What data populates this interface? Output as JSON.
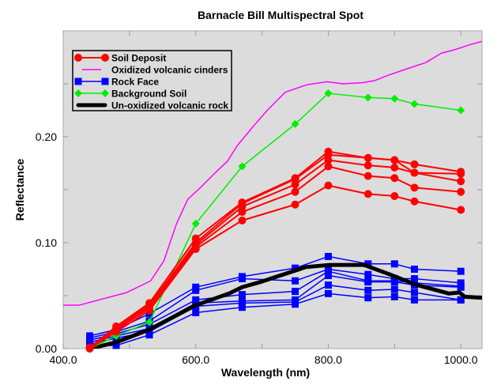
{
  "chart_data": {
    "type": "line",
    "title": "Barnacle Bill Multispectral Spot",
    "xlabel": "Wavelength (nm)",
    "ylabel": "Reflectance",
    "xlim": [
      400,
      1032
    ],
    "ylim": [
      0,
      0.3
    ],
    "xticks": [
      400,
      500,
      600,
      700,
      800,
      900,
      1000
    ],
    "xtick_labels": [
      "400.0",
      "",
      "600.0",
      "",
      "800.0",
      "",
      "1000.0"
    ],
    "yticks": [
      0,
      0.05,
      0.1,
      0.15,
      0.2,
      0.25
    ],
    "ytick_labels": [
      "0.00",
      "",
      "0.10",
      "",
      "0.20",
      ""
    ],
    "grid": false,
    "legend_position": "top-left",
    "background": "#dcdcdc",
    "colors": {
      "soil_deposit": "#ff0000",
      "oxidized_cinders": "#ff00ff",
      "rock_face": "#0000ff",
      "background_soil": "#00ee00",
      "unoxidized_rock": "#000000"
    },
    "legend": [
      {
        "label": "Soil Deposit",
        "color": "#ff0000",
        "marker": "circle",
        "width": 2
      },
      {
        "label": "Oxidized volcanic cinders",
        "color": "#ff00ff",
        "marker": "none",
        "width": 1.5
      },
      {
        "label": "Rock Face",
        "color": "#0000ff",
        "marker": "square",
        "width": 1.5
      },
      {
        "label": "Background Soil",
        "color": "#00ee00",
        "marker": "diamond",
        "width": 1.5
      },
      {
        "label": "Un-oxidized volcanic rock",
        "color": "#000000",
        "marker": "none",
        "width": 5
      }
    ],
    "x": [
      440,
      480,
      530,
      600,
      670,
      750,
      800,
      860,
      900,
      930,
      1000
    ],
    "series": [
      {
        "name": "Soil Deposit",
        "group": "soil_deposit",
        "values": [
          0.001,
          0.021,
          0.043,
          0.104,
          0.138,
          0.161,
          0.186,
          0.18,
          0.178,
          0.174,
          0.167
        ]
      },
      {
        "name": "Soil Deposit",
        "group": "soil_deposit",
        "values": [
          0.001,
          0.02,
          0.041,
          0.1,
          0.137,
          0.16,
          0.183,
          0.18,
          0.178,
          0.166,
          0.165
        ]
      },
      {
        "name": "Soil Deposit",
        "group": "soil_deposit",
        "values": [
          0.001,
          0.019,
          0.04,
          0.098,
          0.134,
          0.155,
          0.178,
          0.173,
          0.171,
          0.166,
          0.158
        ]
      },
      {
        "name": "Soil Deposit",
        "group": "soil_deposit",
        "values": [
          0.001,
          0.018,
          0.038,
          0.096,
          0.129,
          0.148,
          0.172,
          0.163,
          0.161,
          0.152,
          0.148
        ]
      },
      {
        "name": "Soil Deposit",
        "group": "soil_deposit",
        "values": [
          0.0,
          0.016,
          0.036,
          0.094,
          0.121,
          0.136,
          0.154,
          0.146,
          0.144,
          0.139,
          0.131
        ]
      },
      {
        "name": "Background Soil",
        "group": "background_soil",
        "values": [
          0.0,
          0.012,
          0.025,
          0.118,
          0.172,
          0.212,
          0.241,
          0.237,
          0.236,
          0.231,
          0.225
        ]
      },
      {
        "name": "Rock Face",
        "group": "rock_face",
        "values": [
          0.012,
          0.018,
          0.033,
          0.058,
          0.068,
          0.076,
          0.087,
          0.08,
          0.08,
          0.075,
          0.073
        ]
      },
      {
        "name": "Rock Face",
        "group": "rock_face",
        "values": [
          0.01,
          0.016,
          0.026,
          0.055,
          0.066,
          0.064,
          0.075,
          0.07,
          0.066,
          0.066,
          0.062
        ]
      },
      {
        "name": "Rock Face",
        "group": "rock_face",
        "values": [
          0.008,
          0.014,
          0.023,
          0.046,
          0.051,
          0.054,
          0.073,
          0.064,
          0.064,
          0.062,
          0.059
        ]
      },
      {
        "name": "Rock Face",
        "group": "rock_face",
        "values": [
          0.006,
          0.012,
          0.019,
          0.043,
          0.045,
          0.046,
          0.069,
          0.063,
          0.063,
          0.06,
          0.058
        ]
      },
      {
        "name": "Rock Face",
        "group": "rock_face",
        "values": [
          0.004,
          0.01,
          0.016,
          0.04,
          0.043,
          0.044,
          0.06,
          0.055,
          0.056,
          0.053,
          0.046
        ]
      },
      {
        "name": "Rock Face",
        "group": "rock_face",
        "values": [
          0.003,
          0.003,
          0.013,
          0.034,
          0.039,
          0.042,
          0.052,
          0.048,
          0.049,
          0.046,
          0.046
        ]
      }
    ],
    "continuous_series": [
      {
        "name": "Oxidized volcanic cinders",
        "group": "oxidized_cinders",
        "points": [
          [
            400,
            0.041
          ],
          [
            424,
            0.041
          ],
          [
            448,
            0.045
          ],
          [
            496,
            0.053
          ],
          [
            532,
            0.064
          ],
          [
            552,
            0.083
          ],
          [
            571,
            0.118
          ],
          [
            588,
            0.141
          ],
          [
            607,
            0.152
          ],
          [
            631,
            0.167
          ],
          [
            648,
            0.177
          ],
          [
            663,
            0.192
          ],
          [
            687,
            0.21
          ],
          [
            708,
            0.225
          ],
          [
            735,
            0.242
          ],
          [
            767,
            0.249
          ],
          [
            798,
            0.252
          ],
          [
            822,
            0.25
          ],
          [
            851,
            0.251
          ],
          [
            870,
            0.253
          ],
          [
            890,
            0.258
          ],
          [
            918,
            0.264
          ],
          [
            947,
            0.27
          ],
          [
            971,
            0.279
          ],
          [
            990,
            0.282
          ],
          [
            1014,
            0.287
          ],
          [
            1032,
            0.29
          ]
        ]
      },
      {
        "name": "Un-oxidized volcanic rock",
        "group": "unoxidized_rock",
        "points": [
          [
            440,
            0.0
          ],
          [
            480,
            0.006
          ],
          [
            530,
            0.018
          ],
          [
            600,
            0.041
          ],
          [
            650,
            0.052
          ],
          [
            670,
            0.058
          ],
          [
            698,
            0.063
          ],
          [
            766,
            0.077
          ],
          [
            802,
            0.079
          ],
          [
            854,
            0.079
          ],
          [
            893,
            0.07
          ],
          [
            934,
            0.06
          ],
          [
            982,
            0.052
          ],
          [
            998,
            0.053
          ],
          [
            1006,
            0.049
          ],
          [
            1032,
            0.048
          ]
        ]
      }
    ]
  }
}
